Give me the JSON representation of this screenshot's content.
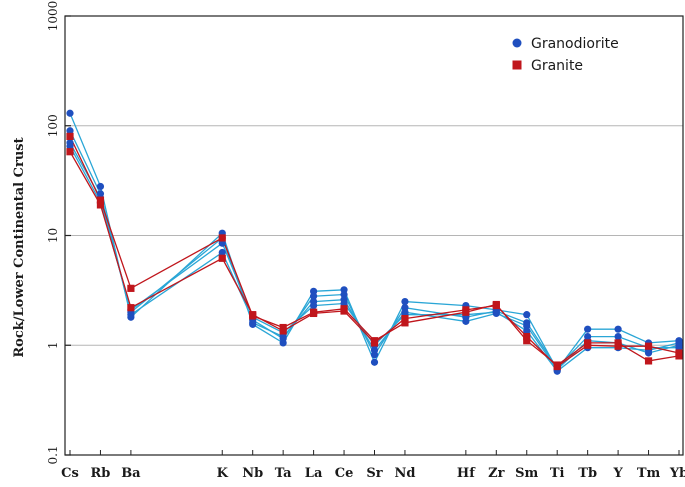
{
  "chart_data": {
    "type": "line",
    "scale": "log",
    "ylabel": "Rock/Lower Continental Crust",
    "ylim": [
      0.1,
      1000
    ],
    "y_ticks": [
      "0.1",
      "1",
      "10",
      "100",
      "1000"
    ],
    "categories": [
      "Cs",
      "Rb",
      "Ba",
      "K",
      "Nb",
      "Ta",
      "La",
      "Ce",
      "Sr",
      "Nd",
      "Hf",
      "Zr",
      "Sm",
      "Ti",
      "Tb",
      "Y",
      "Tm",
      "Yb"
    ],
    "category_slots": [
      0,
      1,
      2,
      5,
      6,
      7,
      8,
      9,
      10,
      11,
      13,
      14,
      15,
      16,
      17,
      18,
      19,
      20
    ],
    "slot_count": 21,
    "gridlines": [
      1,
      10,
      100
    ],
    "legend": {
      "position": "top-right",
      "items": [
        {
          "label": "Granodiorite",
          "marker": "circle",
          "color": "#1f4fbf"
        },
        {
          "label": "Granite",
          "marker": "square",
          "color": "#c0161c"
        }
      ]
    },
    "series": [
      {
        "group": "Granodiorite",
        "line_color": "#2aa6d6",
        "marker_color": "#1f4fbf",
        "values": [
          130,
          28,
          1.8,
          10.5,
          1.55,
          1.05,
          3.1,
          3.2,
          0.7,
          2.5,
          2.3,
          2.1,
          1.9,
          0.6,
          1.4,
          1.4,
          1.05,
          1.1
        ]
      },
      {
        "group": "Granodiorite",
        "line_color": "#2aa6d6",
        "marker_color": "#1f4fbf",
        "values": [
          90,
          24,
          1.9,
          7,
          1.7,
          1.15,
          2.8,
          2.9,
          0.82,
          2.2,
          1.8,
          2.05,
          1.6,
          0.62,
          1.2,
          1.2,
          0.95,
          0.95
        ]
      },
      {
        "group": "Granodiorite",
        "line_color": "#2aa6d6",
        "marker_color": "#1f4fbf",
        "values": [
          70,
          22,
          2.0,
          9.5,
          1.6,
          1.2,
          2.5,
          2.6,
          0.9,
          2.0,
          1.65,
          1.95,
          1.5,
          0.6,
          1.1,
          1.05,
          0.85,
          1.0
        ]
      },
      {
        "group": "Granodiorite",
        "line_color": "#2aa6d6",
        "marker_color": "#1f4fbf",
        "values": [
          65,
          20,
          2.1,
          8.5,
          1.8,
          1.3,
          2.3,
          2.4,
          1.0,
          1.9,
          1.9,
          2.0,
          1.35,
          0.58,
          0.95,
          0.95,
          0.9,
          1.05
        ]
      },
      {
        "group": "Granite",
        "line_color": "#c0161c",
        "marker_color": "#c0161c",
        "values": [
          80,
          21,
          3.3,
          9.5,
          1.85,
          1.45,
          2.0,
          2.15,
          1.1,
          1.6,
          2.0,
          2.35,
          1.1,
          0.66,
          1.05,
          1.05,
          0.72,
          0.8
        ]
      },
      {
        "group": "Granite",
        "line_color": "#c0161c",
        "marker_color": "#c0161c",
        "values": [
          58,
          19,
          2.2,
          6.2,
          1.9,
          1.35,
          1.95,
          2.05,
          1.05,
          1.75,
          2.1,
          2.3,
          1.2,
          0.64,
          1.0,
          0.98,
          0.98,
          0.85
        ]
      }
    ]
  }
}
